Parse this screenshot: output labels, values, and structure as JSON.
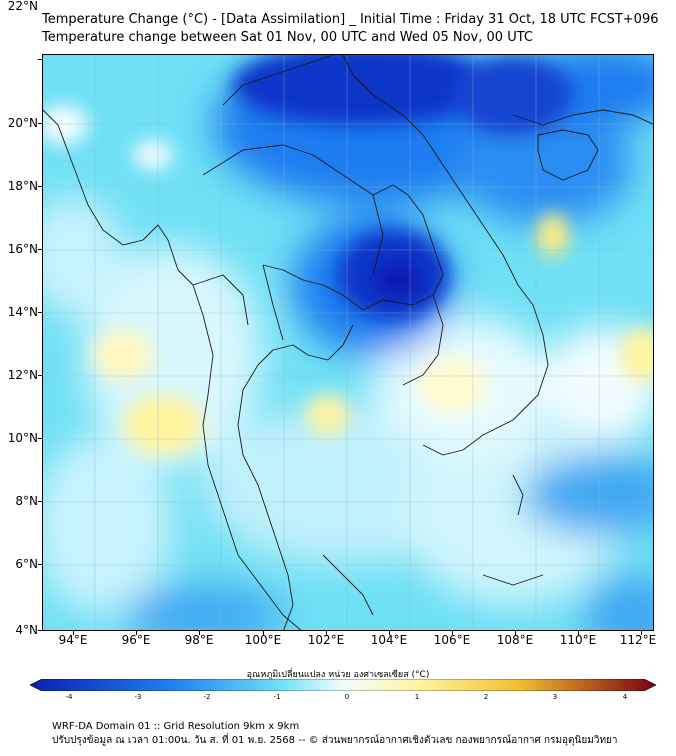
{
  "title_line1": "Temperature Change (°C) - [Data Assimilation] _ Initial Time : Friday 31 Oct, 18 UTC FCST+096",
  "title_line2": "Temperature change between Sat 01 Nov, 00 UTC and Wed 05 Nov, 00 UTC",
  "lat_labels": [
    "22°N",
    "20°N",
    "18°N",
    "16°N",
    "14°N",
    "12°N",
    "10°N",
    "8°N",
    "6°N",
    "4°N"
  ],
  "lon_labels": [
    "94°E",
    "96°E",
    "98°E",
    "100°E",
    "102°E",
    "104°E",
    "106°E",
    "108°E",
    "110°E",
    "112°E"
  ],
  "colorbar": {
    "label": "อุณหภูมิเปลี่ยนแปลง หน่วย องศาเซลเซียส (°C)",
    "ticks": [
      "-4",
      "-3",
      "-2",
      "-1",
      "0",
      "1",
      "2",
      "3",
      "4"
    ],
    "colors": {
      "strong_cooling": "#0a1fb4",
      "moderate_cooling": "#1f7bf0",
      "weak_cooling": "#6fe0f5",
      "neutral": "#f2fcff",
      "weak_warming": "#fff4a0",
      "moderate_warming": "#f2c030",
      "strong_warming": "#7a0010"
    }
  },
  "footer_line1": "WRF-DA Domain 01 :: Grid Resolution 9km x 9km",
  "footer_line2": "ปรับปรุงข้อมูล ณ เวลา 01:00น. วัน ส. ที่ 01 พ.ย. 2568 -- © ส่วนพยากรณ์อากาศเชิงตัวเลข กองพยากรณ์อากาศ กรมอุตุนิยมวิทยา"
}
